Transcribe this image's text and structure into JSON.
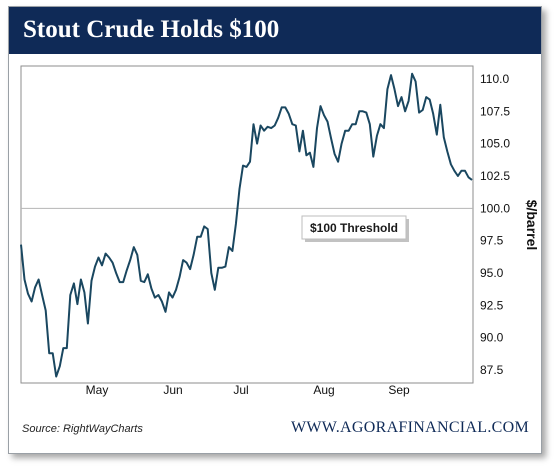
{
  "chart_data": {
    "type": "line",
    "title": "Stout Crude Holds $100",
    "ylabel": "$/barrel",
    "ylim": [
      86.5,
      111
    ],
    "yticks": [
      "110.0",
      "107.5",
      "105.0",
      "102.5",
      "100.0",
      "97.5",
      "95.0",
      "92.5",
      "90.0",
      "87.5"
    ],
    "xticks": [
      "May",
      "Jun",
      "Jul",
      "Aug",
      "Sep"
    ],
    "threshold": {
      "value": 100,
      "label": "$100 Threshold"
    },
    "series": [
      {
        "color": "#1a4760",
        "values": [
          97.2,
          94.5,
          93.4,
          92.8,
          93.9,
          94.5,
          93.3,
          92.1,
          88.8,
          88.8,
          87.0,
          87.8,
          89.2,
          89.2,
          93.3,
          94.2,
          92.6,
          94.5,
          93.5,
          91.1,
          94.4,
          95.5,
          96.2,
          95.6,
          96.5,
          96.2,
          95.8,
          95.0,
          94.3,
          94.3,
          95.2,
          96.0,
          97.0,
          96.4,
          94.4,
          94.3,
          94.9,
          93.8,
          93.1,
          93.3,
          92.8,
          92.0,
          93.5,
          93.1,
          93.7,
          94.7,
          96.0,
          95.8,
          95.3,
          96.4,
          97.8,
          97.8,
          98.6,
          98.4,
          95.0,
          93.7,
          95.4,
          95.4,
          95.5,
          97.0,
          96.7,
          98.8,
          101.5,
          103.3,
          103.2,
          103.6,
          106.5,
          105.0,
          106.4,
          106.0,
          106.3,
          106.2,
          106.4,
          107.0,
          107.8,
          107.8,
          107.3,
          106.5,
          106.4,
          104.4,
          106.0,
          104.1,
          104.3,
          103.2,
          106.2,
          107.9,
          107.2,
          106.7,
          105.4,
          104.2,
          103.6,
          105.0,
          106.0,
          106.0,
          106.5,
          106.5,
          107.5,
          107.5,
          107.4,
          106.5,
          104.0,
          105.6,
          106.5,
          106.2,
          109.2,
          110.3,
          109.2,
          107.9,
          108.6,
          107.5,
          108.3,
          110.4,
          109.8,
          107.4,
          107.6,
          108.6,
          108.4,
          107.3,
          105.7,
          108.0,
          105.5,
          104.4,
          103.4,
          102.9,
          102.5,
          102.9,
          102.9,
          102.4,
          102.2
        ]
      }
    ],
    "grid": false
  },
  "source": "Source: RightWayCharts",
  "brand": "WWW.AGORAFINANCIAL.COM",
  "colors": {
    "title_bar": "#0f2a57",
    "line": "#1a4760",
    "threshold": "#b5b5b5"
  }
}
